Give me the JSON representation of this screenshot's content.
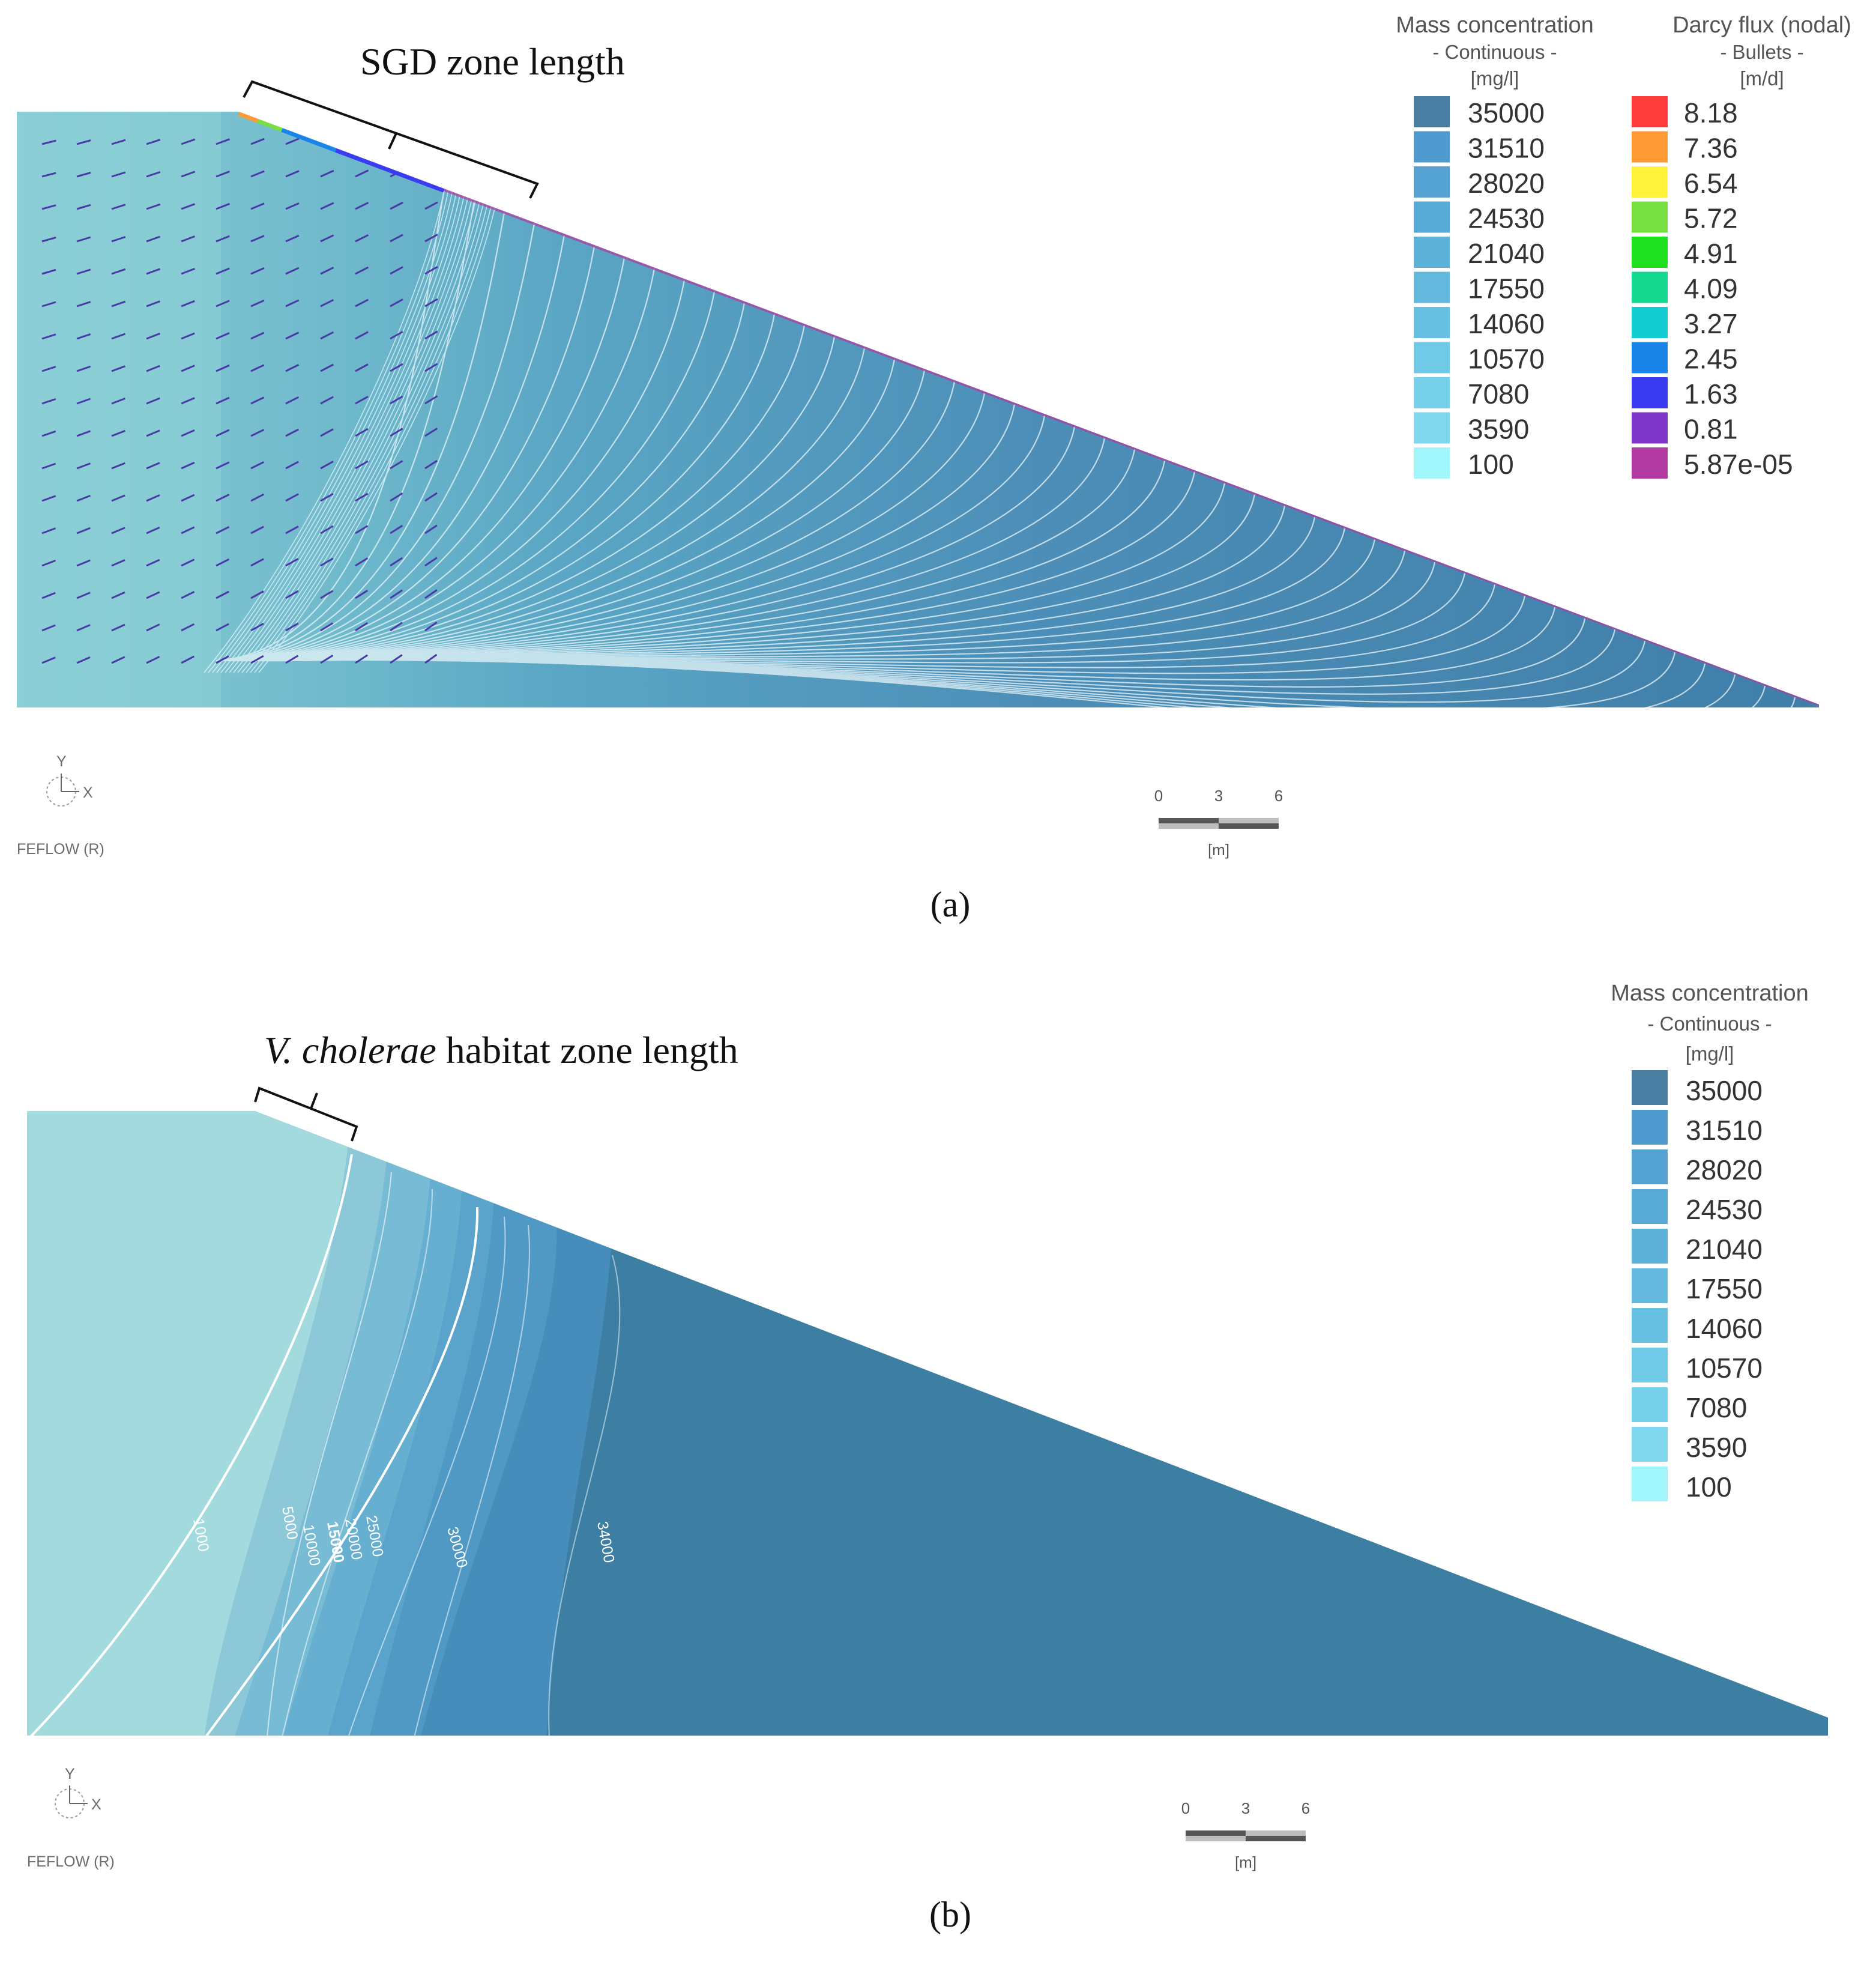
{
  "panel_a": {
    "annotation": "SGD zone length",
    "caption": "(a)",
    "legend_concentration": {
      "title": "Mass concentration",
      "subtitle": "- Continuous -",
      "unit": "[mg/l]",
      "items": [
        {
          "value": "35000",
          "color": "#4a7fa3"
        },
        {
          "value": "31510",
          "color": "#4f9bcf"
        },
        {
          "value": "28020",
          "color": "#53a2d2"
        },
        {
          "value": "24530",
          "color": "#57aad6"
        },
        {
          "value": "21040",
          "color": "#5db2da"
        },
        {
          "value": "17550",
          "color": "#63bade"
        },
        {
          "value": "14060",
          "color": "#69c1e2"
        },
        {
          "value": "10570",
          "color": "#70c9e6"
        },
        {
          "value": "7080",
          "color": "#77d1ea"
        },
        {
          "value": "3590",
          "color": "#7fd8ee"
        },
        {
          "value": "100",
          "color": "#a0f6fb"
        }
      ]
    },
    "legend_flux": {
      "title": "Darcy flux (nodal)",
      "subtitle": "- Bullets -",
      "unit": "[m/d]",
      "items": [
        {
          "value": "8.18",
          "color": "#ff3b3b"
        },
        {
          "value": "7.36",
          "color": "#ff9a35"
        },
        {
          "value": "6.54",
          "color": "#fff23a"
        },
        {
          "value": "5.72",
          "color": "#77e040"
        },
        {
          "value": "4.91",
          "color": "#1ee01e"
        },
        {
          "value": "4.09",
          "color": "#15d890"
        },
        {
          "value": "3.27",
          "color": "#12ccd2"
        },
        {
          "value": "2.45",
          "color": "#1a84e8"
        },
        {
          "value": "1.63",
          "color": "#3b3cf2"
        },
        {
          "value": "0.81",
          "color": "#7d36c8"
        },
        {
          "value": "5.87e-05",
          "color": "#b23aa0"
        }
      ]
    },
    "axis": {
      "y": "Y",
      "x": "X"
    },
    "software": "FEFLOW (R)",
    "scale": {
      "ticks": [
        "0",
        "3",
        "6"
      ],
      "unit": "[m]"
    }
  },
  "panel_b": {
    "annotation_italic": "V. cholerae",
    "annotation_rest": " habitat zone length",
    "caption": "(b)",
    "legend_concentration": {
      "title": "Mass concentration",
      "subtitle": "- Continuous -",
      "unit": "[mg/l]",
      "items": [
        {
          "value": "35000",
          "color": "#4a7fa3"
        },
        {
          "value": "31510",
          "color": "#4f9bcf"
        },
        {
          "value": "28020",
          "color": "#53a2d2"
        },
        {
          "value": "24530",
          "color": "#57aad6"
        },
        {
          "value": "21040",
          "color": "#5db2da"
        },
        {
          "value": "17550",
          "color": "#63bade"
        },
        {
          "value": "14060",
          "color": "#69c1e2"
        },
        {
          "value": "10570",
          "color": "#70c9e6"
        },
        {
          "value": "7080",
          "color": "#77d1ea"
        },
        {
          "value": "3590",
          "color": "#7fd8ee"
        },
        {
          "value": "100",
          "color": "#a0f6fb"
        }
      ]
    },
    "isolines": [
      "1000",
      "5000",
      "10000",
      "15000",
      "20000",
      "25000",
      "30000",
      "34000"
    ],
    "axis": {
      "y": "Y",
      "x": "X"
    },
    "software": "FEFLOW (R)",
    "scale": {
      "ticks": [
        "0",
        "3",
        "6"
      ],
      "unit": "[m]"
    }
  },
  "colors": {
    "domain_fresh": "#9fd8dc",
    "domain_saline": "#3d7fa3",
    "vector_field": "#4a3aa8"
  }
}
